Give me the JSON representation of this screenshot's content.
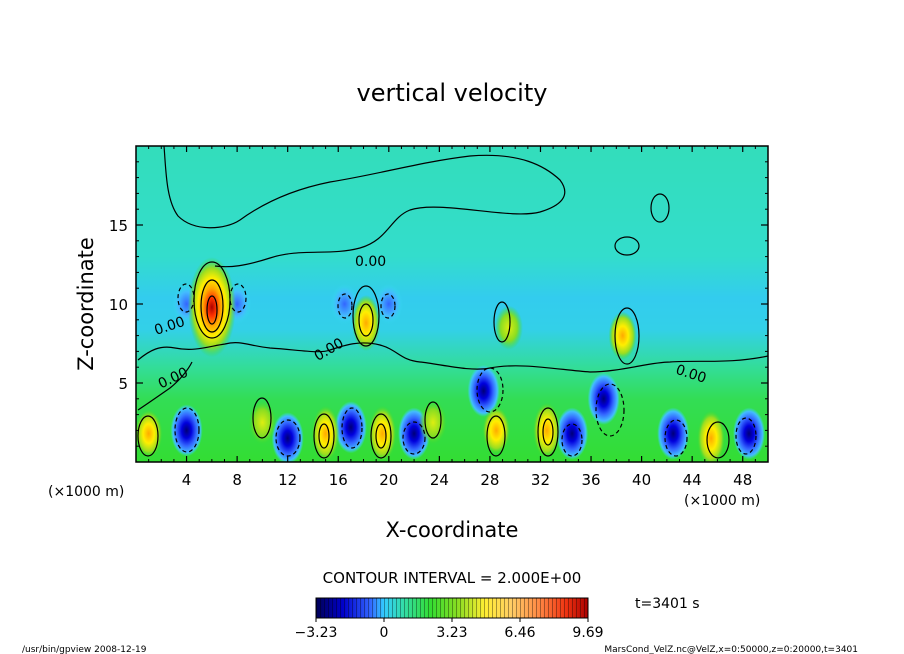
{
  "chart_data": {
    "type": "heatmap",
    "title": "vertical velocity",
    "xlabel": "X-coordinate",
    "ylabel": "Z-coordinate",
    "x_unit": "(×1000 m)",
    "y_unit": "(×1000 m)",
    "xlim": [
      0,
      50
    ],
    "ylim": [
      0,
      20
    ],
    "x_ticks": [
      4,
      8,
      12,
      16,
      20,
      24,
      28,
      32,
      36,
      40,
      44,
      48
    ],
    "x_tick_labels": [
      "4",
      "8",
      "12",
      "16",
      "20",
      "24",
      "28",
      "32",
      "36",
      "40",
      "44",
      "48"
    ],
    "y_ticks": [
      5,
      10,
      15
    ],
    "y_tick_labels": [
      "5",
      "10",
      "15"
    ],
    "contour_interval_text": "CONTOUR INTERVAL = 2.000E+00",
    "contour_interval": 2.0,
    "zero_contour_label": "0.00",
    "colorbar": {
      "range": [
        -3.23,
        9.69
      ],
      "ticks": [
        -3.23,
        0,
        3.23,
        6.46,
        9.69
      ],
      "tick_labels": [
        "−3.23",
        "0",
        "3.23",
        "6.46",
        "9.69"
      ],
      "colors": [
        "#000066",
        "#0000cc",
        "#3355ff",
        "#44aaff",
        "#33ddee",
        "#22dd99",
        "#33dd33",
        "#99dd22",
        "#ffee00",
        "#ffaa00",
        "#ff5500",
        "#cc0000"
      ]
    },
    "updrafts": [
      {
        "x": 6.0,
        "z": 9.8,
        "w": 9.7
      },
      {
        "x": 18.2,
        "z": 8.8,
        "w": 6.5
      },
      {
        "x": 38.5,
        "z": 8.0,
        "w": 3.5
      },
      {
        "x": 29.5,
        "z": 8.5,
        "w": 3.0
      },
      {
        "x": 15.0,
        "z": 1.8,
        "w": 5.5
      },
      {
        "x": 19.5,
        "z": 1.8,
        "w": 5.5
      },
      {
        "x": 32.5,
        "z": 2.0,
        "w": 6.0
      },
      {
        "x": 45.5,
        "z": 1.5,
        "w": 5.0
      },
      {
        "x": 1.0,
        "z": 1.8,
        "w": 3.5
      },
      {
        "x": 10.0,
        "z": 2.5,
        "w": 3.0
      },
      {
        "x": 23.5,
        "z": 2.5,
        "w": 3.0
      },
      {
        "x": 28.5,
        "z": 2.0,
        "w": 3.5
      }
    ],
    "downdrafts": [
      {
        "x": 4.0,
        "z": 2.0,
        "w": -3.2
      },
      {
        "x": 12.0,
        "z": 1.5,
        "w": -3.0
      },
      {
        "x": 17.0,
        "z": 2.2,
        "w": -2.5
      },
      {
        "x": 22.0,
        "z": 1.8,
        "w": -3.0
      },
      {
        "x": 27.5,
        "z": 4.5,
        "w": -3.2
      },
      {
        "x": 34.5,
        "z": 1.8,
        "w": -2.8
      },
      {
        "x": 37.0,
        "z": 4.0,
        "w": -3.2
      },
      {
        "x": 42.5,
        "z": 1.8,
        "w": -3.0
      },
      {
        "x": 48.5,
        "z": 1.8,
        "w": -2.8
      },
      {
        "x": 4.0,
        "z": 10.0,
        "w": -2.0
      },
      {
        "x": 8.0,
        "z": 10.0,
        "w": -2.0
      },
      {
        "x": 16.5,
        "z": 10.0,
        "w": -1.8
      },
      {
        "x": 20.0,
        "z": 10.0,
        "w": -1.8
      }
    ]
  },
  "annotations": {
    "time_label": "t=3401 s",
    "footer_left": "/usr/bin/gpview   2008-12-19",
    "footer_right": "MarsCond_VelZ.nc@VelZ,x=0:50000,z=0:20000,t=3401"
  }
}
